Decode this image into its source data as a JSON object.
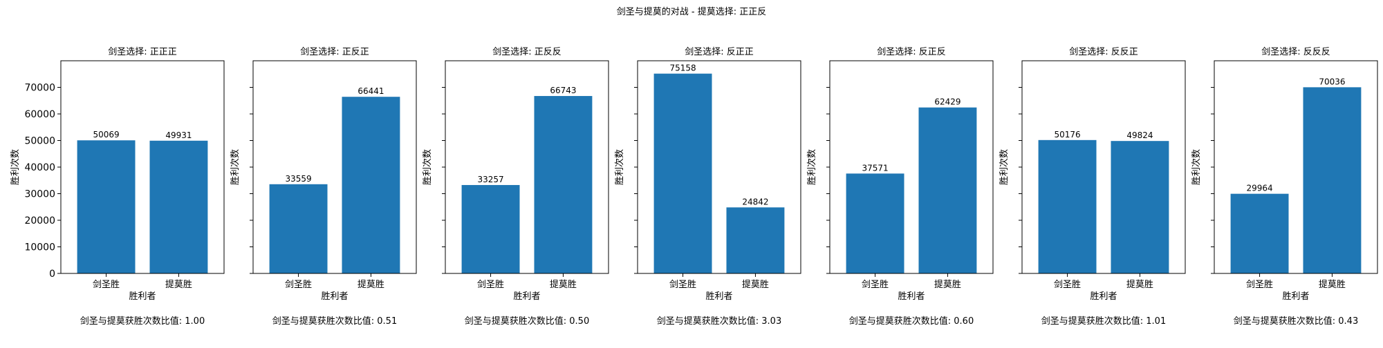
{
  "figure_title": "剑圣与提莫的对战 - 提莫选择: 正正反",
  "chart_data": [
    {
      "type": "bar",
      "title": "剑圣选择: 正正正",
      "categories": [
        "剑圣胜",
        "提莫胜"
      ],
      "values": [
        50069,
        49931
      ],
      "value_labels": [
        "50069",
        "49931"
      ],
      "xlabel": "胜利者",
      "ylabel": "胜利次数",
      "ylim": [
        0,
        80000
      ],
      "yticks": [
        0,
        10000,
        20000,
        30000,
        40000,
        50000,
        60000,
        70000
      ],
      "ytick_labels": [
        "0",
        "10000",
        "20000",
        "30000",
        "40000",
        "50000",
        "60000",
        "70000"
      ],
      "show_ytick_labels": true,
      "annotation": "剑圣与提莫获胜次数比值: 1.00",
      "bar_color": "#1f77b4"
    },
    {
      "type": "bar",
      "title": "剑圣选择: 正反正",
      "categories": [
        "剑圣胜",
        "提莫胜"
      ],
      "values": [
        33559,
        66441
      ],
      "value_labels": [
        "33559",
        "66441"
      ],
      "xlabel": "胜利者",
      "ylabel": "胜利次数",
      "ylim": [
        0,
        80000
      ],
      "yticks": [
        0,
        10000,
        20000,
        30000,
        40000,
        50000,
        60000,
        70000
      ],
      "show_ytick_labels": false,
      "annotation": "剑圣与提莫获胜次数比值: 0.51",
      "bar_color": "#1f77b4"
    },
    {
      "type": "bar",
      "title": "剑圣选择: 正反反",
      "categories": [
        "剑圣胜",
        "提莫胜"
      ],
      "values": [
        33257,
        66743
      ],
      "value_labels": [
        "33257",
        "66743"
      ],
      "xlabel": "胜利者",
      "ylabel": "胜利次数",
      "ylim": [
        0,
        80000
      ],
      "yticks": [
        0,
        10000,
        20000,
        30000,
        40000,
        50000,
        60000,
        70000
      ],
      "show_ytick_labels": false,
      "annotation": "剑圣与提莫获胜次数比值: 0.50",
      "bar_color": "#1f77b4"
    },
    {
      "type": "bar",
      "title": "剑圣选择: 反正正",
      "categories": [
        "剑圣胜",
        "提莫胜"
      ],
      "values": [
        75158,
        24842
      ],
      "value_labels": [
        "75158",
        "24842"
      ],
      "xlabel": "胜利者",
      "ylabel": "胜利次数",
      "ylim": [
        0,
        80000
      ],
      "yticks": [
        0,
        10000,
        20000,
        30000,
        40000,
        50000,
        60000,
        70000
      ],
      "show_ytick_labels": false,
      "annotation": "剑圣与提莫获胜次数比值: 3.03",
      "bar_color": "#1f77b4"
    },
    {
      "type": "bar",
      "title": "剑圣选择: 反正反",
      "categories": [
        "剑圣胜",
        "提莫胜"
      ],
      "values": [
        37571,
        62429
      ],
      "value_labels": [
        "37571",
        "62429"
      ],
      "xlabel": "胜利者",
      "ylabel": "胜利次数",
      "ylim": [
        0,
        80000
      ],
      "yticks": [
        0,
        10000,
        20000,
        30000,
        40000,
        50000,
        60000,
        70000
      ],
      "show_ytick_labels": false,
      "annotation": "剑圣与提莫获胜次数比值: 0.60",
      "bar_color": "#1f77b4"
    },
    {
      "type": "bar",
      "title": "剑圣选择: 反反正",
      "categories": [
        "剑圣胜",
        "提莫胜"
      ],
      "values": [
        50176,
        49824
      ],
      "value_labels": [
        "50176",
        "49824"
      ],
      "xlabel": "胜利者",
      "ylabel": "胜利次数",
      "ylim": [
        0,
        80000
      ],
      "yticks": [
        0,
        10000,
        20000,
        30000,
        40000,
        50000,
        60000,
        70000
      ],
      "show_ytick_labels": false,
      "annotation": "剑圣与提莫获胜次数比值: 1.01",
      "bar_color": "#1f77b4"
    },
    {
      "type": "bar",
      "title": "剑圣选择: 反反反",
      "categories": [
        "剑圣胜",
        "提莫胜"
      ],
      "values": [
        29964,
        70036
      ],
      "value_labels": [
        "29964",
        "70036"
      ],
      "xlabel": "胜利者",
      "ylabel": "胜利次数",
      "ylim": [
        0,
        80000
      ],
      "yticks": [
        0,
        10000,
        20000,
        30000,
        40000,
        50000,
        60000,
        70000
      ],
      "show_ytick_labels": false,
      "annotation": "剑圣与提莫获胜次数比值: 0.43",
      "bar_color": "#1f77b4"
    }
  ]
}
